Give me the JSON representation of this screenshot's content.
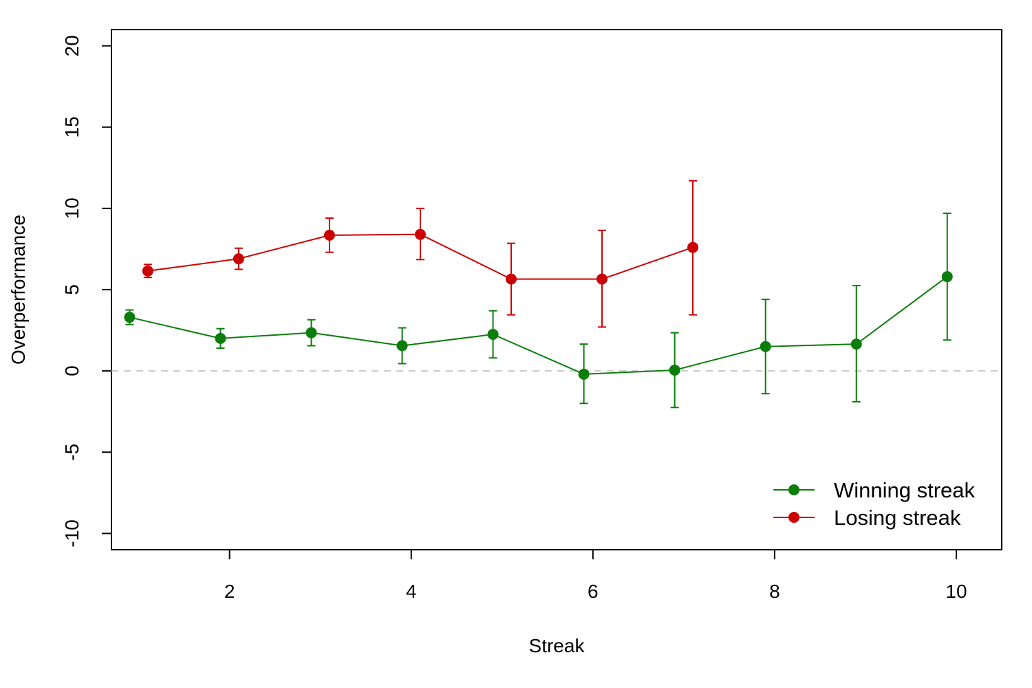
{
  "chart_data": {
    "type": "line",
    "xlabel": "Streak",
    "ylabel": "Overperformance",
    "xlim": [
      0.7,
      10.5
    ],
    "ylim": [
      -11,
      21
    ],
    "x_ticks": [
      2,
      4,
      6,
      8,
      10
    ],
    "y_ticks": [
      -10,
      -5,
      0,
      5,
      10,
      15,
      20
    ],
    "reference_line": {
      "y": 0,
      "style": "dashed",
      "color": "#c8c8c8"
    },
    "grid": false,
    "legend_position": "bottom-right",
    "series": [
      {
        "name": "Winning streak",
        "color": "#0a7d0a",
        "points": [
          {
            "x": 1,
            "y": 3.3,
            "lower": 2.85,
            "upper": 3.75
          },
          {
            "x": 2,
            "y": 2.0,
            "lower": 1.4,
            "upper": 2.6
          },
          {
            "x": 3,
            "y": 2.35,
            "lower": 1.55,
            "upper": 3.15
          },
          {
            "x": 4,
            "y": 1.55,
            "lower": 0.45,
            "upper": 2.65
          },
          {
            "x": 5,
            "y": 2.25,
            "lower": 0.8,
            "upper": 3.7
          },
          {
            "x": 6,
            "y": -0.2,
            "lower": -2.0,
            "upper": 1.65
          },
          {
            "x": 7,
            "y": 0.05,
            "lower": -2.25,
            "upper": 2.35
          },
          {
            "x": 8,
            "y": 1.5,
            "lower": -1.4,
            "upper": 4.4
          },
          {
            "x": 9,
            "y": 1.65,
            "lower": -1.9,
            "upper": 5.25
          },
          {
            "x": 10,
            "y": 5.8,
            "lower": 1.9,
            "upper": 9.7
          }
        ]
      },
      {
        "name": "Losing streak",
        "color": "#cc0000",
        "points": [
          {
            "x": 1,
            "y": 6.15,
            "lower": 5.75,
            "upper": 6.55
          },
          {
            "x": 2,
            "y": 6.9,
            "lower": 6.25,
            "upper": 7.55
          },
          {
            "x": 3,
            "y": 8.35,
            "lower": 7.3,
            "upper": 9.4
          },
          {
            "x": 4,
            "y": 8.4,
            "lower": 6.85,
            "upper": 10.0
          },
          {
            "x": 5,
            "y": 5.65,
            "lower": 3.45,
            "upper": 7.85
          },
          {
            "x": 6,
            "y": 5.65,
            "lower": 2.7,
            "upper": 8.65
          },
          {
            "x": 7,
            "y": 7.6,
            "lower": 3.45,
            "upper": 11.7
          }
        ]
      }
    ]
  }
}
